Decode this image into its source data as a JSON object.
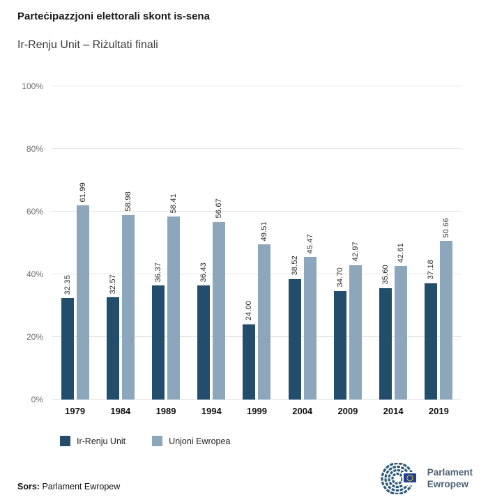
{
  "header": {
    "title": "Parteċipazzjoni elettorali skont is-sena",
    "subtitle": "Ir-Renju Unit – Riżultati finali"
  },
  "chart_data": {
    "type": "bar",
    "categories": [
      "1979",
      "1984",
      "1989",
      "1994",
      "1999",
      "2004",
      "2009",
      "2014",
      "2019"
    ],
    "series": [
      {
        "name": "Ir-Renju Unit",
        "color": "#234e6b",
        "values": [
          32.35,
          32.57,
          36.37,
          36.43,
          24.0,
          38.52,
          34.7,
          35.6,
          37.18
        ]
      },
      {
        "name": "Unjoni Ewropea",
        "color": "#8ca6bb",
        "values": [
          61.99,
          58.98,
          58.41,
          56.67,
          49.51,
          45.47,
          42.97,
          42.61,
          50.66
        ]
      }
    ],
    "ylim": [
      0,
      100
    ],
    "yticks": [
      "0%",
      "20%",
      "40%",
      "60%",
      "80%",
      "100%"
    ],
    "grid": true,
    "legend_position": "bottom",
    "value_labels": "rotated-vertical",
    "title": "Parteċipazzjoni elettorali skont is-sena",
    "subtitle": "Ir-Renju Unit – Riżultati finali",
    "xlabel": "",
    "ylabel": ""
  },
  "footer": {
    "source_label": "Sors:",
    "source_text": "Parlament Ewropew",
    "logo": {
      "line1": "Parlament",
      "line2": "Ewropew"
    }
  }
}
